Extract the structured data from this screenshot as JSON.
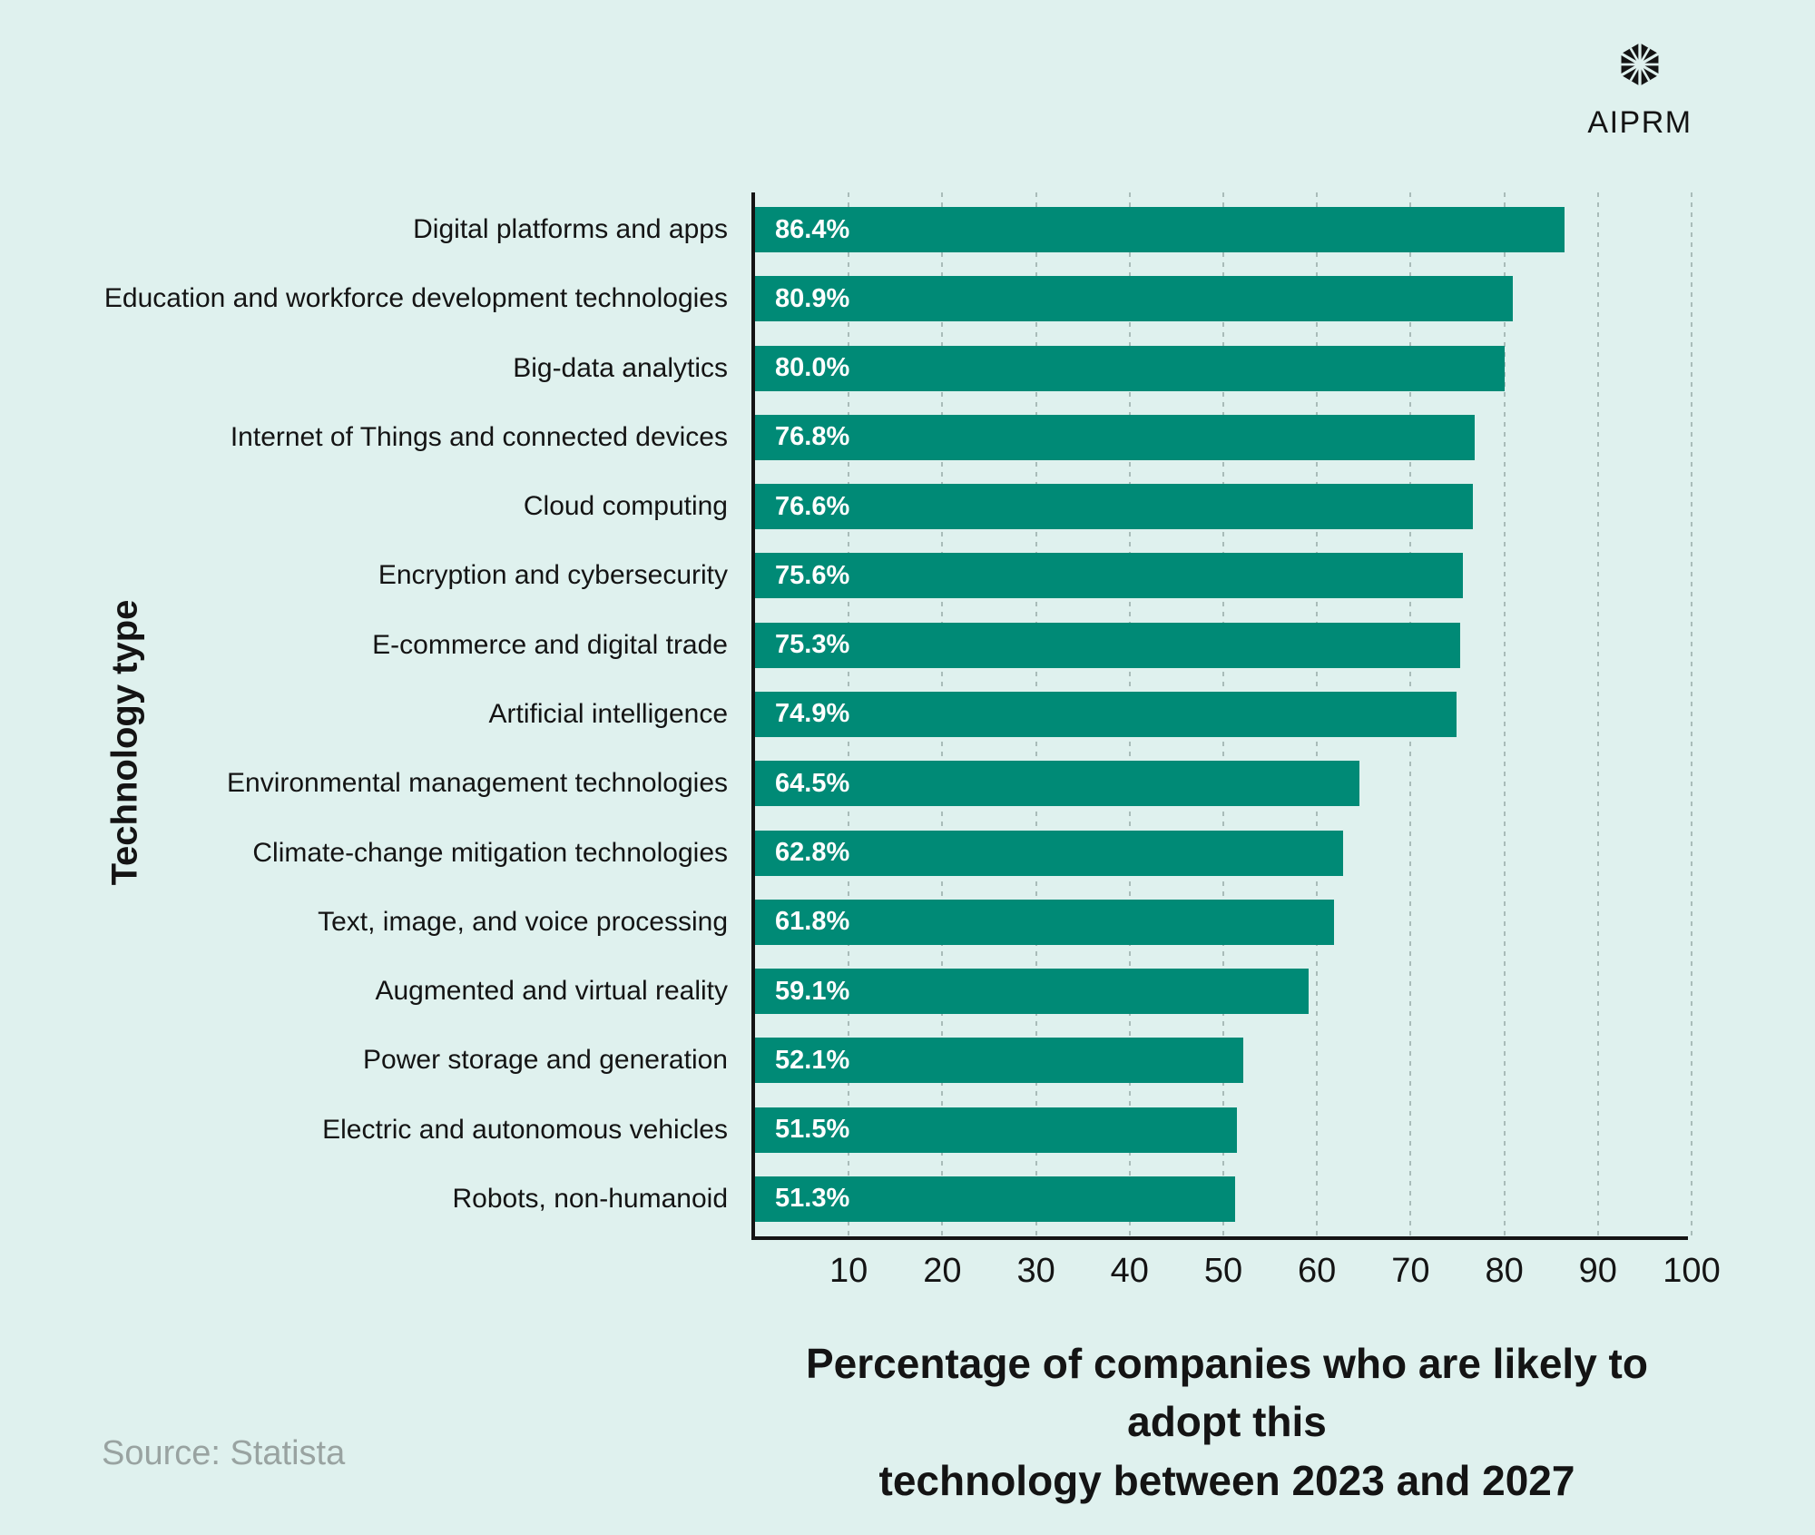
{
  "brand": {
    "name": "AIPRM"
  },
  "chart_data": {
    "type": "bar",
    "orientation": "horizontal",
    "categories": [
      "Digital platforms and apps",
      "Education and workforce development technologies",
      "Big-data analytics",
      "Internet of Things and connected devices",
      "Cloud computing",
      "Encryption and cybersecurity",
      "E-commerce and digital trade",
      "Artificial intelligence",
      "Environmental management technologies",
      "Climate-change mitigation technologies",
      "Text, image, and voice processing",
      "Augmented and virtual reality",
      "Power storage and generation",
      "Electric and autonomous vehicles",
      "Robots, non-humanoid"
    ],
    "values": [
      86.4,
      80.9,
      80.0,
      76.8,
      76.6,
      75.6,
      75.3,
      74.9,
      64.5,
      62.8,
      61.8,
      59.1,
      52.1,
      51.5,
      51.3
    ],
    "value_labels": [
      "86.4%",
      "80.9%",
      "80.0%",
      "76.8%",
      "76.6%",
      "75.6%",
      "75.3%",
      "74.9%",
      "64.5%",
      "62.8%",
      "61.8%",
      "59.1%",
      "52.1%",
      "51.5%",
      "51.3%"
    ],
    "xlabel": "Percentage of companies who are likely to adopt this technology between 2023 and 2027",
    "xlabel_lines": [
      "Percentage of companies who are likely to adopt this",
      "technology between 2023 and 2027"
    ],
    "ylabel": "Technology type",
    "xlim": [
      0,
      100
    ],
    "xticks": [
      10,
      20,
      30,
      40,
      50,
      60,
      70,
      80,
      90,
      100
    ],
    "grid": "vertical dashed",
    "legend": "none"
  },
  "source": {
    "text": "Source: Statista"
  },
  "colors": {
    "background": "#dff1ee",
    "bar": "#008a76",
    "bar_value_text": "#ffffff",
    "axis": "#141414",
    "gridline": "#a9bcb9",
    "text": "#141414",
    "source_text": "#99a3a1"
  }
}
